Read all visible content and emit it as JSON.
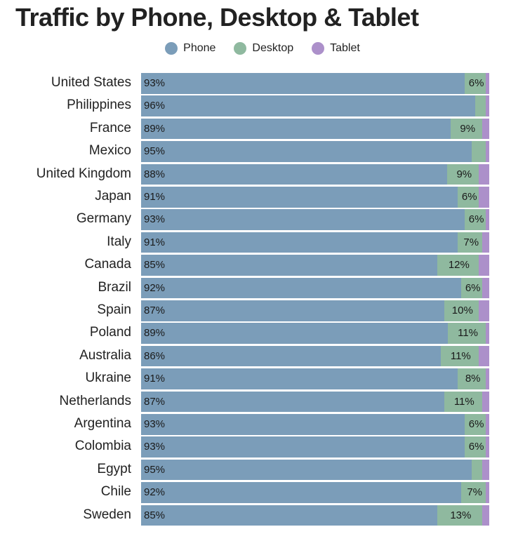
{
  "chart_data": {
    "type": "bar",
    "orientation": "horizontal",
    "stacked": true,
    "title": "Traffic by Phone, Desktop & Tablet",
    "xlabel": "",
    "ylabel": "",
    "xlim": [
      0,
      100
    ],
    "legend_position": "top-center",
    "categories": [
      "United States",
      "Philippines",
      "France",
      "Mexico",
      "United Kingdom",
      "Japan",
      "Germany",
      "Italy",
      "Canada",
      "Brazil",
      "Spain",
      "Poland",
      "Australia",
      "Ukraine",
      "Netherlands",
      "Argentina",
      "Colombia",
      "Egypt",
      "Chile",
      "Sweden"
    ],
    "series": [
      {
        "name": "Phone",
        "color": "#7b9db9",
        "values": [
          93,
          96,
          89,
          95,
          88,
          91,
          93,
          91,
          85,
          92,
          87,
          89,
          86,
          91,
          87,
          93,
          93,
          95,
          92,
          85
        ],
        "labels": [
          "93%",
          "96%",
          "89%",
          "95%",
          "88%",
          "91%",
          "93%",
          "91%",
          "85%",
          "92%",
          "87%",
          "89%",
          "86%",
          "91%",
          "87%",
          "93%",
          "93%",
          "95%",
          "92%",
          "85%"
        ]
      },
      {
        "name": "Desktop",
        "color": "#8fb99f",
        "values": [
          6,
          3,
          9,
          4,
          9,
          6,
          6,
          7,
          12,
          6,
          10,
          11,
          11,
          8,
          11,
          6,
          6,
          3,
          7,
          13
        ],
        "labels": [
          "6%",
          "",
          "9%",
          "",
          "9%",
          "6%",
          "6%",
          "7%",
          "12%",
          "6%",
          "10%",
          "11%",
          "11%",
          "8%",
          "11%",
          "6%",
          "6%",
          "",
          "7%",
          "13%"
        ]
      },
      {
        "name": "Tablet",
        "color": "#ac90ca",
        "values": [
          1,
          1,
          2,
          1,
          3,
          3,
          1,
          2,
          3,
          2,
          3,
          1,
          3,
          1,
          2,
          1,
          1,
          2,
          1,
          2
        ],
        "labels": [
          "",
          "",
          "",
          "",
          "",
          "",
          "",
          "",
          "",
          "",
          "",
          "",
          "",
          "",
          "",
          "",
          "",
          "",
          "",
          ""
        ]
      }
    ]
  }
}
